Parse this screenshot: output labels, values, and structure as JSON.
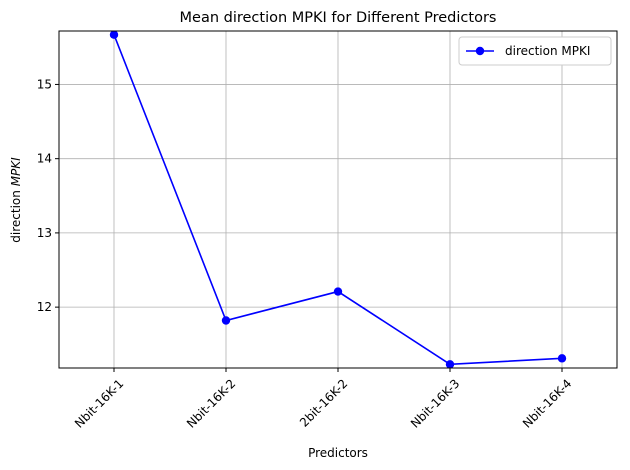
{
  "chart_data": {
    "type": "line",
    "title": "Mean direction MPKI for Different Predictors",
    "xlabel": "Predictors",
    "ylabel_prefix": "direction ",
    "ylabel_italic": "MPKI",
    "categories": [
      "Nbit-16K-1",
      "Nbit-16K-2",
      "2bit-16K-2",
      "Nbit-16K-3",
      "Nbit-16K-4"
    ],
    "series": [
      {
        "name": "direction MPKI",
        "values": [
          15.67,
          11.82,
          12.21,
          11.23,
          11.31
        ],
        "color": "#0000ff",
        "marker": "circle"
      }
    ],
    "ylim": [
      11.18,
      15.72
    ],
    "yticks": [
      12,
      13,
      14,
      15
    ],
    "grid": true,
    "legend": "top-right"
  }
}
